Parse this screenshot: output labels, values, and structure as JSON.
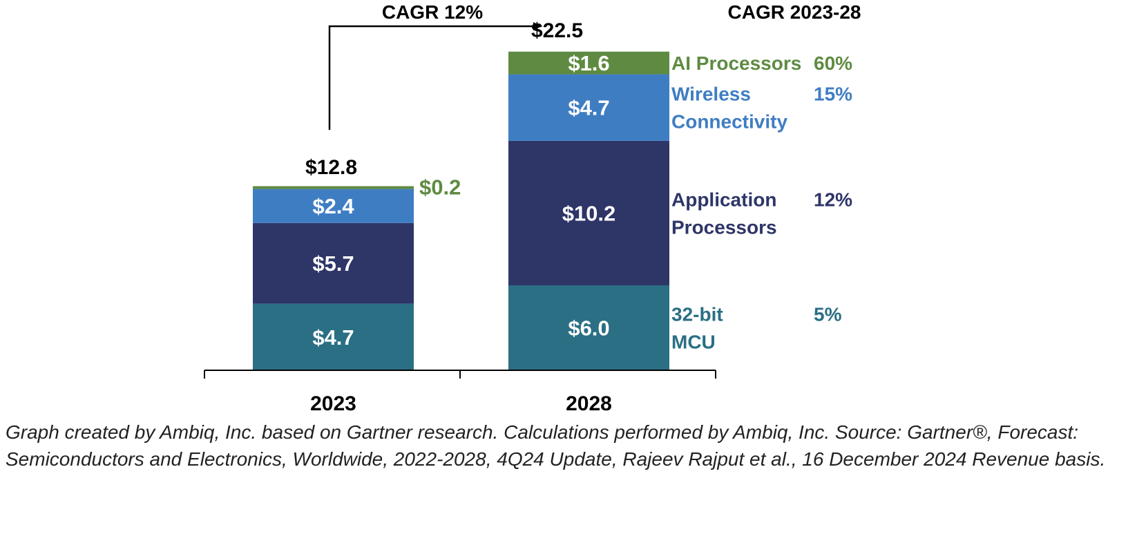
{
  "chart_data": {
    "type": "bar",
    "stacked": true,
    "categories": [
      "2023",
      "2028"
    ],
    "totals": [
      {
        "value": 12.8,
        "label": "$12.8"
      },
      {
        "value": 22.5,
        "label": "$22.5"
      }
    ],
    "series": [
      {
        "name": "32-bit MCU",
        "name_lines": [
          "32-bit",
          "MCU"
        ],
        "cagr": "5%",
        "color": "#2a6f84",
        "values": [
          4.7,
          6.0
        ],
        "labels": [
          "$4.7",
          "$6.0"
        ]
      },
      {
        "name": "Application Processors",
        "name_lines": [
          "Application",
          "Processors"
        ],
        "cagr": "12%",
        "color": "#2e3567",
        "values": [
          5.7,
          10.2
        ],
        "labels": [
          "$5.7",
          "$10.2"
        ]
      },
      {
        "name": "Wireless Connectivity",
        "name_lines": [
          "Wireless",
          "Connectivity"
        ],
        "cagr": "15%",
        "color": "#3f7dc3",
        "values": [
          2.4,
          4.7
        ],
        "labels": [
          "$2.4",
          "$4.7"
        ]
      },
      {
        "name": "AI Processors",
        "name_lines": [
          "AI Processors"
        ],
        "cagr": "60%",
        "color": "#5e8b41",
        "values": [
          0.2,
          1.6
        ],
        "labels": [
          "$0.2",
          "$1.6"
        ]
      }
    ],
    "cagr_header": "CAGR 2023-28",
    "arrow_label": "CAGR 12%",
    "legend_placement": "right",
    "grid": false
  },
  "footnote": "Graph created by Ambiq, Inc. based on Gartner research. Calculations performed by Ambiq, Inc. Source: Gartner®, Forecast: Semiconductors and Electronics, Worldwide, 2022-2028, 4Q24 Update, Rajeev Rajput et al., 16 December 2024 Revenue basis."
}
